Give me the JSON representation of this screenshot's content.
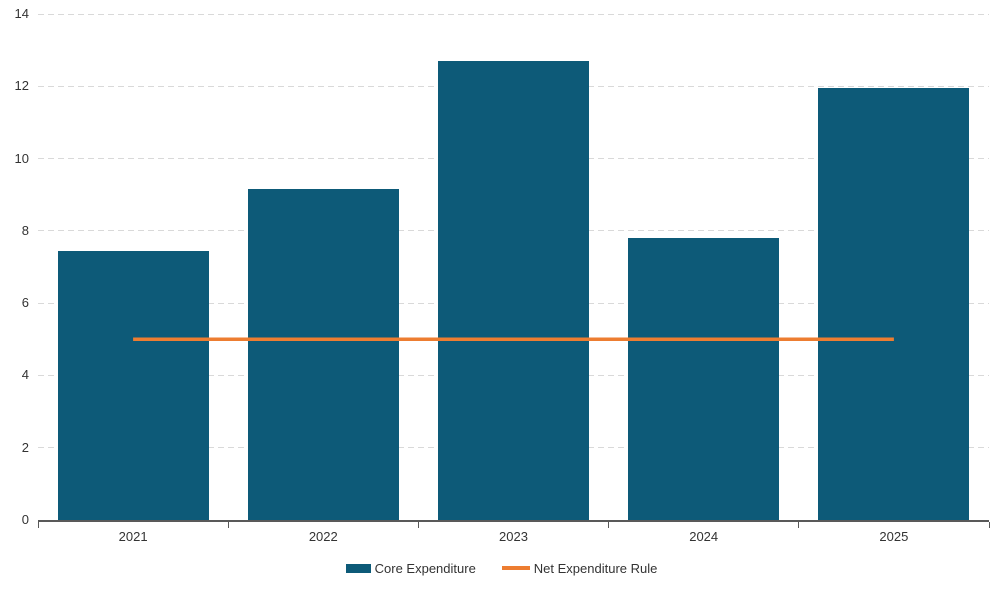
{
  "chart_data": {
    "type": "bar",
    "title": "",
    "categories": [
      "2021",
      "2022",
      "2023",
      "2024",
      "2025"
    ],
    "series": [
      {
        "name": "Core Expenditure",
        "type": "bar",
        "color": "#0d5a78",
        "values": [
          7.45,
          9.15,
          12.7,
          7.8,
          11.95
        ]
      },
      {
        "name": "Net Expenditure Rule",
        "type": "line",
        "color": "#ed7d31",
        "values": [
          5,
          5,
          5,
          5,
          5
        ]
      }
    ],
    "xlabel": "",
    "ylabel": "",
    "ylim": [
      0,
      14
    ],
    "yticks": [
      0,
      2,
      4,
      6,
      8,
      10,
      12,
      14
    ],
    "grid": "horizontal-dashed",
    "legend_position": "bottom"
  },
  "colors": {
    "background": "#ffffff",
    "bar": "#0d5a78",
    "line": "#ed7d31",
    "gridline": "#d9d9d9",
    "axis": "#595959",
    "text": "#333333"
  }
}
